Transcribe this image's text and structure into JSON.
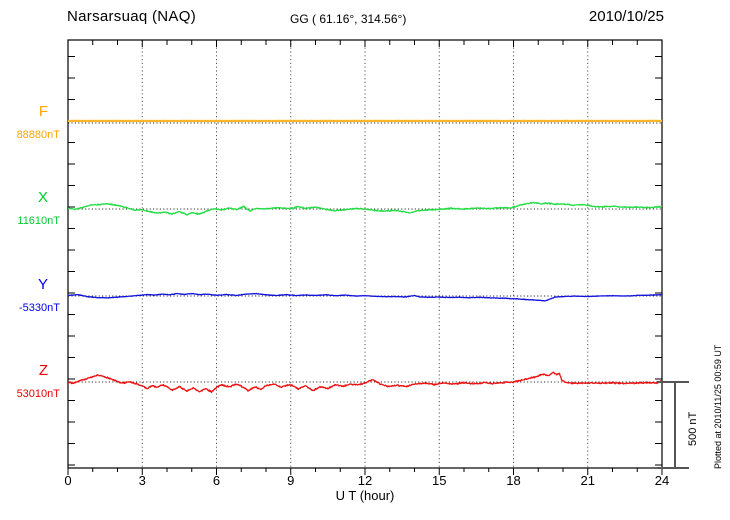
{
  "header": {
    "station": "Narsarsuaq (NAQ)",
    "coordinates": "GG ( 61.16°, 314.56°)",
    "date": "2010/10/25"
  },
  "x_axis": {
    "label": "U T (hour)",
    "tick_labels": [
      "0",
      "3",
      "6",
      "9",
      "12",
      "15",
      "18",
      "21",
      "24"
    ],
    "tick_hours": [
      0,
      3,
      6,
      9,
      12,
      15,
      18,
      21,
      24
    ],
    "minor_tick_step_hours": 1,
    "range_hours": [
      0,
      24
    ]
  },
  "scale_bar": {
    "label": "500 nT",
    "nT": 500
  },
  "footnote": "Plotted at 2010/11/25 00:59 UT",
  "chart_data": {
    "type": "line",
    "title": "Narsarsuaq (NAQ) magnetogram 2010/10/25",
    "xlabel": "U T (hour)",
    "x_range_hours": [
      0,
      24
    ],
    "grid_hours": [
      3,
      6,
      9,
      12,
      15,
      18,
      21
    ],
    "grid": "vertical-dotted",
    "nT_per_scale_division": 500,
    "units": "nT (deviation from channel baseline)",
    "series": [
      {
        "name": "F",
        "value_label": "88880nT",
        "baseline_nT": 88880,
        "label_color": "#FFA500",
        "line_color": "#FFB529",
        "noise_nT": 1,
        "seed": 11,
        "keypoints": [
          [
            0,
            12
          ],
          [
            24,
            12
          ]
        ]
      },
      {
        "name": "X",
        "value_label": "11610nT",
        "baseline_nT": 11610,
        "label_color": "#00CC33",
        "line_color": "#22DD44",
        "noise_nT": 4,
        "seed": 23,
        "keypoints": [
          [
            0,
            5
          ],
          [
            0.3,
            -3
          ],
          [
            0.6,
            10
          ],
          [
            0.9,
            22
          ],
          [
            1.2,
            26
          ],
          [
            1.5,
            30
          ],
          [
            1.8,
            26
          ],
          [
            2.1,
            18
          ],
          [
            2.4,
            6
          ],
          [
            2.7,
            -6
          ],
          [
            3.0,
            -4
          ],
          [
            3.3,
            -16
          ],
          [
            3.6,
            -24
          ],
          [
            3.9,
            -18
          ],
          [
            4.2,
            -30
          ],
          [
            4.5,
            -14
          ],
          [
            4.8,
            -34
          ],
          [
            5.0,
            -20
          ],
          [
            5.3,
            -30
          ],
          [
            5.6,
            -12
          ],
          [
            5.9,
            2
          ],
          [
            6.2,
            -6
          ],
          [
            6.5,
            6
          ],
          [
            6.8,
            -4
          ],
          [
            7.1,
            14
          ],
          [
            7.35,
            -12
          ],
          [
            7.6,
            4
          ],
          [
            8.0,
            0
          ],
          [
            8.5,
            8
          ],
          [
            9.0,
            2
          ],
          [
            9.3,
            14
          ],
          [
            9.6,
            4
          ],
          [
            10.0,
            10
          ],
          [
            10.4,
            -2
          ],
          [
            10.8,
            -10
          ],
          [
            11.2,
            -4
          ],
          [
            11.6,
            2
          ],
          [
            12.0,
            0
          ],
          [
            12.4,
            -8
          ],
          [
            12.8,
            -12
          ],
          [
            13.2,
            -8
          ],
          [
            13.6,
            -16
          ],
          [
            13.8,
            -22
          ],
          [
            14.1,
            -10
          ],
          [
            14.5,
            -6
          ],
          [
            15.0,
            -2
          ],
          [
            15.5,
            4
          ],
          [
            16.0,
            0
          ],
          [
            16.5,
            6
          ],
          [
            17.0,
            2
          ],
          [
            17.5,
            8
          ],
          [
            17.9,
            6
          ],
          [
            18.2,
            20
          ],
          [
            18.5,
            30
          ],
          [
            18.8,
            38
          ],
          [
            19.1,
            30
          ],
          [
            19.4,
            34
          ],
          [
            19.7,
            28
          ],
          [
            20.0,
            30
          ],
          [
            20.4,
            22
          ],
          [
            20.8,
            26
          ],
          [
            21.2,
            16
          ],
          [
            21.6,
            12
          ],
          [
            22.0,
            16
          ],
          [
            22.5,
            10
          ],
          [
            23.0,
            12
          ],
          [
            23.5,
            8
          ],
          [
            24.0,
            14
          ]
        ]
      },
      {
        "name": "Y",
        "value_label": "-5330nT",
        "baseline_nT": -5330,
        "label_color": "#0000EE",
        "line_color": "#1111DD",
        "noise_nT": 2,
        "seed": 37,
        "keypoints": [
          [
            0,
            3
          ],
          [
            0.4,
            8
          ],
          [
            0.8,
            -4
          ],
          [
            1.2,
            -9
          ],
          [
            1.6,
            -11
          ],
          [
            2.0,
            -7
          ],
          [
            2.4,
            -2
          ],
          [
            2.8,
            3
          ],
          [
            3.2,
            8
          ],
          [
            3.5,
            5
          ],
          [
            3.8,
            11
          ],
          [
            4.1,
            7
          ],
          [
            4.4,
            14
          ],
          [
            4.7,
            9
          ],
          [
            5.0,
            14
          ],
          [
            5.3,
            8
          ],
          [
            5.6,
            11
          ],
          [
            6.0,
            4
          ],
          [
            6.4,
            9
          ],
          [
            6.8,
            3
          ],
          [
            7.2,
            11
          ],
          [
            7.6,
            14
          ],
          [
            8.0,
            7
          ],
          [
            8.4,
            3
          ],
          [
            8.8,
            8
          ],
          [
            9.2,
            3
          ],
          [
            9.6,
            6
          ],
          [
            10.0,
            3
          ],
          [
            10.4,
            7
          ],
          [
            10.8,
            2
          ],
          [
            11.2,
            5
          ],
          [
            11.6,
            0
          ],
          [
            12.0,
            2
          ],
          [
            12.4,
            -2
          ],
          [
            12.8,
            -4
          ],
          [
            13.2,
            -3
          ],
          [
            13.6,
            -6
          ],
          [
            14.0,
            3
          ],
          [
            14.2,
            -5
          ],
          [
            14.6,
            -8
          ],
          [
            15.0,
            -6
          ],
          [
            15.4,
            -9
          ],
          [
            15.8,
            -7
          ],
          [
            16.2,
            -10
          ],
          [
            16.6,
            -8
          ],
          [
            17.0,
            -10
          ],
          [
            17.4,
            -12
          ],
          [
            17.8,
            -14
          ],
          [
            18.2,
            -17
          ],
          [
            18.6,
            -21
          ],
          [
            19.0,
            -25
          ],
          [
            19.3,
            -28
          ],
          [
            19.5,
            -16
          ],
          [
            19.7,
            -6
          ],
          [
            20.0,
            -3
          ],
          [
            20.5,
            -1
          ],
          [
            21.0,
            -3
          ],
          [
            21.5,
            0
          ],
          [
            22.0,
            2
          ],
          [
            22.5,
            0
          ],
          [
            23.0,
            3
          ],
          [
            23.5,
            5
          ],
          [
            24.0,
            8
          ]
        ]
      },
      {
        "name": "Z",
        "value_label": "53010nT",
        "baseline_nT": 53010,
        "label_color": "#EE0000",
        "line_color": "#EE1111",
        "noise_nT": 5,
        "seed": 51,
        "keypoints": [
          [
            0,
            0
          ],
          [
            0.2,
            -8
          ],
          [
            0.45,
            6
          ],
          [
            0.7,
            18
          ],
          [
            0.95,
            28
          ],
          [
            1.2,
            40
          ],
          [
            1.5,
            30
          ],
          [
            1.8,
            14
          ],
          [
            2.0,
            4
          ],
          [
            2.2,
            -6
          ],
          [
            2.5,
            2
          ],
          [
            2.8,
            -12
          ],
          [
            3.0,
            -22
          ],
          [
            3.2,
            -38
          ],
          [
            3.4,
            -22
          ],
          [
            3.6,
            -32
          ],
          [
            3.8,
            -16
          ],
          [
            4.0,
            -28
          ],
          [
            4.2,
            -48
          ],
          [
            4.5,
            -28
          ],
          [
            4.8,
            -52
          ],
          [
            5.05,
            -34
          ],
          [
            5.3,
            -56
          ],
          [
            5.55,
            -38
          ],
          [
            5.8,
            -58
          ],
          [
            6.0,
            -32
          ],
          [
            6.2,
            -16
          ],
          [
            6.5,
            -28
          ],
          [
            6.8,
            -12
          ],
          [
            7.0,
            -24
          ],
          [
            7.3,
            -52
          ],
          [
            7.55,
            -28
          ],
          [
            7.8,
            -44
          ],
          [
            8.0,
            -22
          ],
          [
            8.3,
            -12
          ],
          [
            8.6,
            -28
          ],
          [
            9.0,
            -16
          ],
          [
            9.3,
            -40
          ],
          [
            9.6,
            -22
          ],
          [
            9.9,
            -50
          ],
          [
            10.2,
            -28
          ],
          [
            10.5,
            -38
          ],
          [
            10.8,
            -16
          ],
          [
            11.1,
            -26
          ],
          [
            11.4,
            -12
          ],
          [
            11.7,
            -16
          ],
          [
            12.0,
            -6
          ],
          [
            12.3,
            14
          ],
          [
            12.6,
            -10
          ],
          [
            12.9,
            -26
          ],
          [
            13.3,
            -20
          ],
          [
            13.7,
            -26
          ],
          [
            14.0,
            -12
          ],
          [
            14.4,
            -6
          ],
          [
            14.8,
            -14
          ],
          [
            15.2,
            -6
          ],
          [
            15.6,
            -12
          ],
          [
            16.0,
            -4
          ],
          [
            16.4,
            -10
          ],
          [
            16.8,
            -4
          ],
          [
            17.2,
            -9
          ],
          [
            17.6,
            -4
          ],
          [
            18.0,
            0
          ],
          [
            18.3,
            10
          ],
          [
            18.6,
            20
          ],
          [
            18.9,
            30
          ],
          [
            19.2,
            46
          ],
          [
            19.4,
            36
          ],
          [
            19.6,
            56
          ],
          [
            19.75,
            42
          ],
          [
            19.85,
            52
          ],
          [
            19.95,
            12
          ],
          [
            20.1,
            -4
          ],
          [
            20.5,
            -8
          ],
          [
            21.0,
            -5
          ],
          [
            21.5,
            -8
          ],
          [
            22.0,
            -5
          ],
          [
            22.5,
            -8
          ],
          [
            23.0,
            -5
          ],
          [
            23.5,
            -3
          ],
          [
            23.8,
            -6
          ],
          [
            24.0,
            10
          ]
        ]
      }
    ]
  },
  "colors": {
    "frame": "#000000",
    "grid_dotted": "#555555",
    "baseline_dotted": "#333333",
    "scale_bar": "#555555",
    "background": "#ffffff"
  }
}
